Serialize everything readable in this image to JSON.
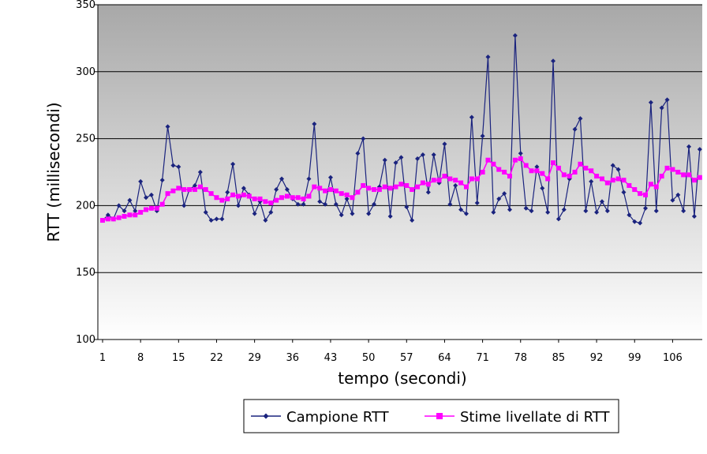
{
  "chart_data": {
    "type": "line",
    "title": "",
    "xlabel": "tempo (secondi)",
    "ylabel": "RTT (millisecondi)",
    "ylim": [
      100,
      350
    ],
    "yticks": [
      100,
      150,
      200,
      250,
      300,
      350
    ],
    "xlim": [
      1,
      111
    ],
    "xticks": [
      1,
      8,
      15,
      22,
      29,
      36,
      43,
      50,
      57,
      64,
      71,
      78,
      85,
      92,
      99,
      106
    ],
    "grid": "horizontal",
    "legend_position": "bottom",
    "x": [
      1,
      2,
      3,
      4,
      5,
      6,
      7,
      8,
      9,
      10,
      11,
      12,
      13,
      14,
      15,
      16,
      17,
      18,
      19,
      20,
      21,
      22,
      23,
      24,
      25,
      26,
      27,
      28,
      29,
      30,
      31,
      32,
      33,
      34,
      35,
      36,
      37,
      38,
      39,
      40,
      41,
      42,
      43,
      44,
      45,
      46,
      47,
      48,
      49,
      50,
      51,
      52,
      53,
      54,
      55,
      56,
      57,
      58,
      59,
      60,
      61,
      62,
      63,
      64,
      65,
      66,
      67,
      68,
      69,
      70,
      71,
      72,
      73,
      74,
      75,
      76,
      77,
      78,
      79,
      80,
      81,
      82,
      83,
      84,
      85,
      86,
      87,
      88,
      89,
      90,
      91,
      92,
      93,
      94,
      95,
      96,
      97,
      98,
      99,
      100,
      101,
      102,
      103,
      104,
      105,
      106,
      107,
      108,
      109,
      110,
      111
    ],
    "series": [
      {
        "name": "Campione RTT",
        "color": "#1a237e",
        "marker": "diamond",
        "values": [
          189,
          193,
          190,
          200,
          196,
          204,
          196,
          218,
          206,
          208,
          196,
          219,
          259,
          230,
          229,
          200,
          212,
          215,
          225,
          195,
          189,
          190,
          190,
          210,
          231,
          200,
          213,
          208,
          194,
          203,
          189,
          195,
          212,
          220,
          212,
          205,
          201,
          201,
          220,
          261,
          203,
          201,
          221,
          201,
          193,
          205,
          194,
          239,
          250,
          194,
          201,
          214,
          234,
          192,
          232,
          236,
          199,
          189,
          235,
          238,
          210,
          238,
          217,
          246,
          201,
          215,
          197,
          194,
          266,
          202,
          252,
          311,
          195,
          205,
          209,
          197,
          327,
          239,
          198,
          196,
          229,
          213,
          195,
          308,
          190,
          197,
          220,
          257,
          265,
          196,
          218,
          195,
          203,
          196,
          230,
          227,
          210,
          193,
          188,
          187,
          198,
          277,
          196,
          273,
          279,
          204,
          208,
          196,
          244,
          192,
          242
        ]
      },
      {
        "name": "Stime livellate di RTT",
        "color": "#ff00ff",
        "marker": "square",
        "values": [
          189,
          190,
          190,
          191,
          192,
          193,
          193,
          195,
          197,
          198,
          198,
          201,
          209,
          211,
          213,
          212,
          212,
          212,
          214,
          212,
          209,
          206,
          204,
          205,
          208,
          207,
          208,
          207,
          205,
          205,
          203,
          202,
          204,
          206,
          207,
          206,
          206,
          205,
          207,
          214,
          213,
          211,
          212,
          211,
          209,
          208,
          206,
          210,
          215,
          213,
          212,
          212,
          214,
          213,
          214,
          216,
          215,
          212,
          214,
          217,
          216,
          219,
          219,
          222,
          220,
          219,
          217,
          214,
          220,
          220,
          225,
          234,
          231,
          227,
          225,
          222,
          234,
          235,
          230,
          226,
          226,
          224,
          220,
          232,
          228,
          223,
          222,
          225,
          231,
          228,
          226,
          222,
          220,
          217,
          219,
          220,
          219,
          215,
          212,
          209,
          208,
          216,
          214,
          222,
          228,
          227,
          225,
          223,
          223,
          219,
          221
        ]
      }
    ]
  }
}
